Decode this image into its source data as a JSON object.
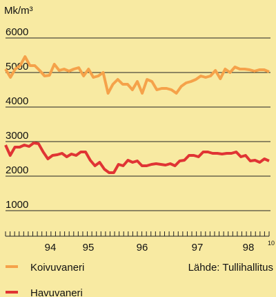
{
  "chart_data": {
    "type": "line",
    "y_label": "Mk/m³",
    "ylim": [
      0,
      6000
    ],
    "yticks": [
      1000,
      2000,
      3000,
      4000,
      5000,
      6000
    ],
    "grid": true,
    "x_labels": [
      "94",
      "95",
      "96",
      "97",
      "98"
    ],
    "x_end_note": "10",
    "source": "Lähde: Tullihallitus",
    "series": [
      {
        "name": "Koivuvaneri",
        "color": "#f5a24a",
        "values": [
          5100,
          4860,
          5100,
          5200,
          5460,
          5200,
          5200,
          5060,
          4900,
          4920,
          5240,
          5060,
          5100,
          5040,
          5100,
          5140,
          4900,
          5100,
          4860,
          4900,
          5000,
          4400,
          4660,
          4800,
          4660,
          4660,
          4500,
          4740,
          4400,
          4800,
          4740,
          4500,
          4540,
          4540,
          4500,
          4400,
          4600,
          4700,
          4740,
          4800,
          4900,
          4860,
          4900,
          5060,
          4820,
          5100,
          5000,
          5160,
          5100,
          5100,
          5080,
          5040,
          5080,
          5080,
          5020
        ]
      },
      {
        "name": "Havuvaneri",
        "color": "#e03434",
        "values": [
          2900,
          2600,
          2840,
          2840,
          2900,
          2860,
          2960,
          2940,
          2700,
          2500,
          2600,
          2620,
          2660,
          2560,
          2640,
          2600,
          2700,
          2700,
          2460,
          2300,
          2400,
          2200,
          2100,
          2100,
          2340,
          2300,
          2460,
          2400,
          2440,
          2300,
          2300,
          2340,
          2360,
          2340,
          2320,
          2360,
          2300,
          2440,
          2460,
          2600,
          2600,
          2560,
          2700,
          2700,
          2660,
          2660,
          2640,
          2660,
          2660,
          2700,
          2560,
          2600,
          2440,
          2460,
          2400,
          2500,
          2440
        ]
      }
    ]
  }
}
